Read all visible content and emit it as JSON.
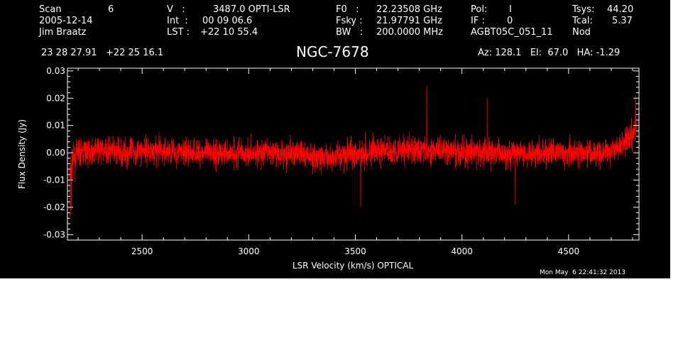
{
  "header": {
    "col1": {
      "line1_label": "Scan",
      "line1_value": "6",
      "line2": "2005-12-14",
      "line3": "Jim Braatz"
    },
    "col2": {
      "line1_label": "V   :",
      "line1_value": "3487.0 OPTI-LSR",
      "line2_label": "Int  :",
      "line2_value": "00 09 06.6",
      "line3_label": "LST :",
      "line3_value": "+22 10 55.4"
    },
    "col3": {
      "line1_label": "F0   :",
      "line1_value": "22.23508 GHz",
      "line2_label": "Fsky :",
      "line2_value": "21.97791 GHz",
      "line3_label": "BW   :",
      "line3_value": "200.0000 MHz"
    },
    "col4": {
      "line1_label": "Pol:",
      "line1_value": "I",
      "line2_label": "IF :",
      "line2_value": "0",
      "line3": "AGBT05C_051_11"
    },
    "col5": {
      "line1_label": "Tsys:",
      "line1_value": "44.20",
      "line2_label": "Tcal:",
      "line2_value": "5.37",
      "line3": "Nod"
    },
    "coords": "23 28 27.91   +22 25 16.1",
    "source": "NGC-7678",
    "pointing": "Az: 128.1   El:  67.0   HA: -1.29",
    "timestamp": "Mon May  6 22:41:32 2013"
  },
  "colors": {
    "background": "#000000",
    "trace": "#ff0000",
    "axes": "#ffffff"
  },
  "chart_data": {
    "type": "line",
    "xlabel": "LSR Velocity (km/s) OPTICAL",
    "ylabel": "Flux Density (Jy)",
    "xlim": [
      2150,
      4830
    ],
    "ylim": [
      -0.032,
      0.031
    ],
    "xticks": [
      2500,
      3000,
      3500,
      4000,
      4500
    ],
    "xtick_labels": [
      "2500",
      "3000",
      "3500",
      "4000",
      "4500"
    ],
    "yticks": [
      -0.03,
      -0.02,
      -0.01,
      0.0,
      0.01,
      0.02,
      0.03
    ],
    "ytick_labels": [
      "-0.03",
      "-0.02",
      "-0.01",
      "0.00",
      "0.01",
      "0.02",
      "0.03"
    ],
    "grid": false,
    "series": [
      {
        "color": "#ff0000",
        "x_range": [
          2160,
          4818
        ],
        "baseline": [
          [
            2160,
            -0.008
          ],
          [
            2175,
            -0.003
          ],
          [
            2200,
            0.0
          ],
          [
            2300,
            0.001
          ],
          [
            2400,
            0.0
          ],
          [
            2500,
            0.001
          ],
          [
            2700,
            0.0
          ],
          [
            3000,
            0.0
          ],
          [
            3200,
            0.0
          ],
          [
            3350,
            -0.002
          ],
          [
            3500,
            0.0
          ],
          [
            3700,
            0.001
          ],
          [
            3850,
            0.001
          ],
          [
            4000,
            0.0
          ],
          [
            4200,
            0.0
          ],
          [
            4400,
            0.0
          ],
          [
            4600,
            0.0
          ],
          [
            4700,
            0.001
          ],
          [
            4760,
            0.003
          ],
          [
            4790,
            0.006
          ],
          [
            4818,
            0.009
          ]
        ],
        "noise_rms": 0.0045,
        "y_range_observed": [
          -0.0235,
          0.0245
        ],
        "spikes": [
          [
            2162,
            -0.0235
          ],
          [
            2168,
            -0.021
          ],
          [
            3835,
            0.0245
          ],
          [
            4118,
            0.02
          ],
          [
            4815,
            0.021
          ],
          [
            3525,
            -0.02
          ],
          [
            4250,
            -0.019
          ]
        ]
      }
    ]
  }
}
